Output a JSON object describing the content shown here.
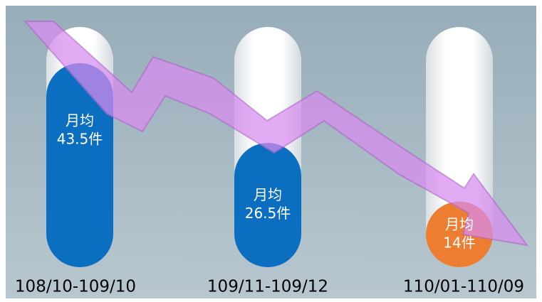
{
  "chart_data": {
    "type": "bar",
    "categories": [
      "108/10-109/10",
      "109/11-109/12",
      "110/01-110/09"
    ],
    "values": [
      43.5,
      26.5,
      14
    ],
    "value_labels": [
      "43.5件",
      "26.5件",
      "14件"
    ],
    "value_caption": "月均",
    "colors": [
      "#0b6ec0",
      "#0b6ec0",
      "#ed7d31"
    ]
  }
}
